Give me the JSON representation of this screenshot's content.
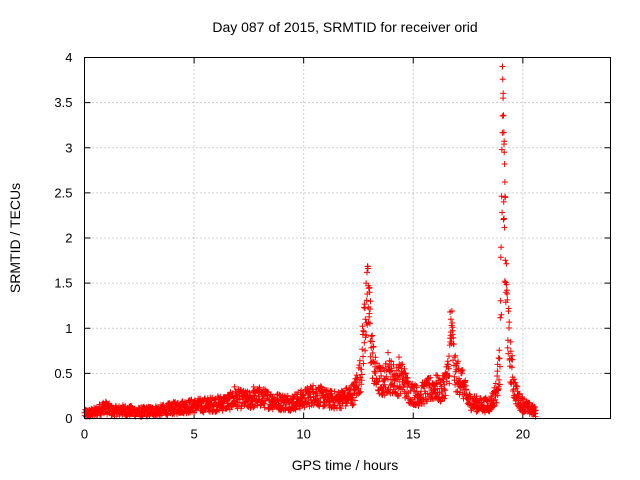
{
  "chart_data": {
    "type": "scatter",
    "title": "Day 087 of 2015, SRMTID for receiver orid",
    "xlabel": "GPS time / hours",
    "ylabel": "SRMTID / TECUs",
    "xlim": [
      0,
      24
    ],
    "ylim": [
      0,
      4
    ],
    "x_ticks": [
      0,
      5,
      10,
      15,
      20
    ],
    "x_tick_labels": [
      "0",
      "5",
      "10",
      "15",
      "20"
    ],
    "y_ticks": [
      0,
      0.5,
      1,
      1.5,
      2,
      2.5,
      3,
      3.5,
      4
    ],
    "y_tick_labels": [
      "0",
      "0.5",
      "1",
      "1.5",
      "2",
      "2.5",
      "3",
      "3.5",
      "4"
    ],
    "grid": true,
    "marker": "+",
    "series": [
      {
        "name": "SRMTID",
        "color": "#ff0000",
        "profile": [
          [
            0.0,
            0.05
          ],
          [
            0.5,
            0.07
          ],
          [
            0.9,
            0.13
          ],
          [
            1.3,
            0.08
          ],
          [
            1.8,
            0.09
          ],
          [
            2.5,
            0.07
          ],
          [
            3.0,
            0.08
          ],
          [
            3.5,
            0.09
          ],
          [
            4.0,
            0.11
          ],
          [
            4.5,
            0.13
          ],
          [
            5.0,
            0.14
          ],
          [
            5.5,
            0.15
          ],
          [
            6.0,
            0.16
          ],
          [
            6.5,
            0.18
          ],
          [
            7.0,
            0.22
          ],
          [
            7.5,
            0.2
          ],
          [
            8.0,
            0.24
          ],
          [
            8.5,
            0.2
          ],
          [
            9.0,
            0.18
          ],
          [
            9.5,
            0.18
          ],
          [
            10.0,
            0.22
          ],
          [
            10.5,
            0.27
          ],
          [
            11.0,
            0.22
          ],
          [
            11.5,
            0.2
          ],
          [
            12.0,
            0.24
          ],
          [
            12.3,
            0.28
          ],
          [
            12.6,
            0.5
          ],
          [
            12.8,
            1.1
          ],
          [
            12.95,
            1.3
          ],
          [
            13.1,
            0.75
          ],
          [
            13.3,
            0.45
          ],
          [
            13.6,
            0.4
          ],
          [
            13.9,
            0.48
          ],
          [
            14.2,
            0.42
          ],
          [
            14.5,
            0.44
          ],
          [
            14.8,
            0.3
          ],
          [
            15.2,
            0.25
          ],
          [
            15.6,
            0.3
          ],
          [
            16.0,
            0.35
          ],
          [
            16.3,
            0.3
          ],
          [
            16.6,
            0.5
          ],
          [
            16.75,
            0.95
          ],
          [
            16.9,
            0.5
          ],
          [
            17.2,
            0.42
          ],
          [
            17.5,
            0.2
          ],
          [
            18.0,
            0.15
          ],
          [
            18.5,
            0.15
          ],
          [
            18.8,
            0.3
          ],
          [
            18.95,
            0.6
          ],
          [
            19.05,
            2.3
          ],
          [
            19.1,
            3.3
          ],
          [
            19.2,
            1.6
          ],
          [
            19.4,
            0.7
          ],
          [
            19.6,
            0.35
          ],
          [
            19.8,
            0.2
          ],
          [
            20.2,
            0.12
          ],
          [
            20.6,
            0.07
          ]
        ],
        "outliers": [
          [
            19.07,
            3.9
          ],
          [
            19.08,
            3.76
          ],
          [
            19.1,
            3.55
          ],
          [
            19.12,
            3.36
          ],
          [
            19.13,
            3.17
          ],
          [
            19.14,
            3.04
          ],
          [
            19.15,
            2.95
          ],
          [
            19.17,
            2.82
          ],
          [
            19.18,
            2.62
          ],
          [
            19.2,
            2.45
          ],
          [
            12.85,
            1.5
          ],
          [
            12.95,
            1.47
          ],
          [
            13.0,
            1.45
          ],
          [
            12.9,
            1.38
          ],
          [
            13.05,
            1.3
          ],
          [
            16.68,
            1.18
          ],
          [
            16.72,
            1.1
          ],
          [
            16.75,
            1.03
          ],
          [
            16.8,
            0.93
          ],
          [
            13.85,
            0.73
          ],
          [
            14.35,
            0.68
          ],
          [
            14.5,
            0.6
          ],
          [
            14.6,
            0.55
          ],
          [
            7.72,
            0.35
          ],
          [
            6.85,
            0.35
          ],
          [
            18.9,
            0.67
          ],
          [
            18.85,
            0.6
          ]
        ]
      }
    ]
  }
}
